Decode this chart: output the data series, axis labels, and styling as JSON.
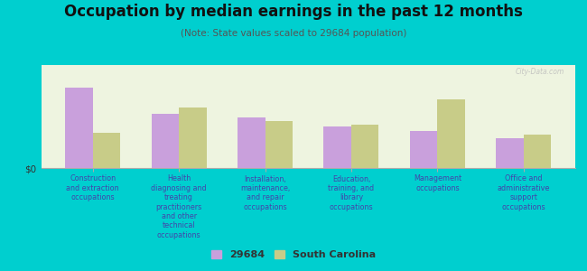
{
  "title": "Occupation by median earnings in the past 12 months",
  "subtitle": "(Note: State values scaled to 29684 population)",
  "background_outer": "#00cfcf",
  "background_inner": "#eef4e0",
  "bar_color_local": "#c9a0dc",
  "bar_color_state": "#c8cc88",
  "categories": [
    "Construction\nand extraction\noccupations",
    "Health\ndiagnosing and\ntreating\npractitioners\nand other\ntechnical\noccupations",
    "Installation,\nmaintenance,\nand repair\noccupations",
    "Education,\ntraining, and\nlibrary\noccupations",
    "Management\noccupations",
    "Office and\nadministrative\nsupport\noccupations"
  ],
  "values_local": [
    82,
    55,
    52,
    42,
    38,
    30
  ],
  "values_state": [
    36,
    62,
    48,
    44,
    70,
    34
  ],
  "ylabel": "$0",
  "legend_local": "29684",
  "legend_state": "South Carolina",
  "watermark": "City-Data.com",
  "title_fontsize": 12,
  "subtitle_fontsize": 7.5,
  "tick_label_fontsize": 5.8,
  "legend_fontsize": 8
}
